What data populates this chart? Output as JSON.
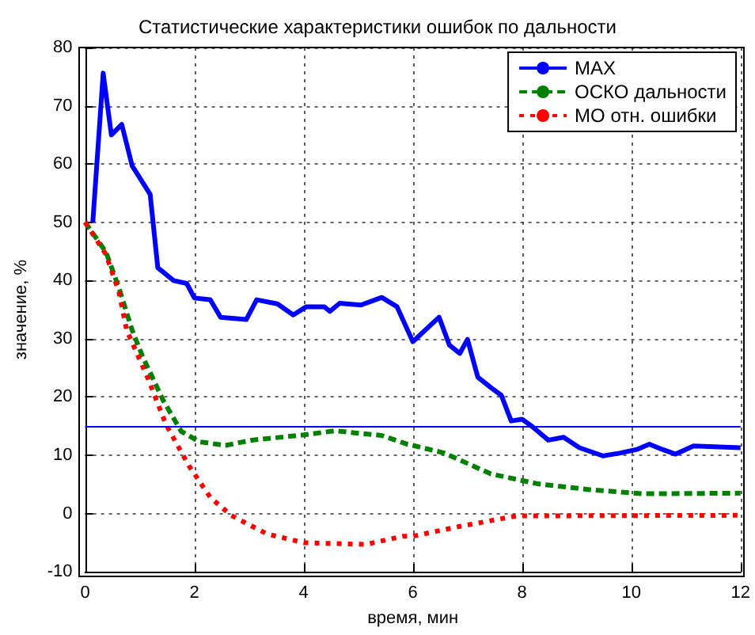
{
  "chart_data": {
    "type": "line",
    "title": "Статистические характеристики ошибок по дальности",
    "xlabel": "время, мин",
    "ylabel": "значение, %",
    "xlim": [
      0,
      12
    ],
    "xticks": [
      0,
      2,
      4,
      6,
      8,
      10,
      12
    ],
    "ylim": [
      -10,
      80
    ],
    "yticks": [
      -10,
      0,
      10,
      20,
      30,
      40,
      50,
      60,
      70,
      80
    ],
    "grid": true,
    "legend": "top right",
    "marker": "none",
    "series": [
      {
        "name": "MAX",
        "color": "#0000ff",
        "line_style": "solid",
        "x": [
          0.14,
          0.33,
          0.48,
          0.67,
          0.86,
          1.19,
          1.33,
          1.62,
          1.86,
          2.0,
          2.29,
          2.48,
          2.95,
          3.14,
          3.52,
          3.81,
          4.05,
          4.38,
          4.48,
          4.66,
          5.05,
          5.43,
          5.71,
          6.0,
          6.48,
          6.67,
          6.86,
          7.0,
          7.19,
          7.43,
          7.62,
          7.8,
          8.0,
          8.19,
          8.48,
          8.76,
          9.05,
          9.48,
          9.8,
          10.1,
          10.33,
          10.57,
          10.81,
          11.14,
          12
        ],
        "values": [
          50,
          75.6,
          65,
          66.8,
          59.7,
          54.8,
          42.2,
          40,
          39.5,
          37,
          36.7,
          33.7,
          33.3,
          36.7,
          36,
          34.1,
          35.5,
          35.5,
          34.7,
          36.1,
          35.8,
          37.1,
          35.5,
          29.5,
          33.7,
          28.9,
          27.5,
          29.9,
          23.4,
          21.6,
          20.3,
          15.9,
          16.2,
          14.9,
          12.6,
          13.1,
          11.3,
          9.9,
          10.4,
          11,
          11.9,
          11,
          10.2,
          11.6,
          11.3
        ]
      },
      {
        "name": "ОСКО дальности",
        "color": "#008000",
        "line_style": "dashed",
        "x": [
          0,
          0.38,
          0.62,
          0.86,
          1.05,
          1.43,
          1.76,
          2.1,
          2.57,
          3.05,
          4.0,
          4.57,
          5.43,
          5.9,
          6.0,
          6.57,
          7.43,
          8.29,
          9.24,
          10.19,
          12
        ],
        "values": [
          50,
          44.9,
          38.7,
          31.5,
          27,
          19.4,
          14.1,
          12.3,
          11.7,
          12.6,
          13.5,
          14.2,
          13.4,
          11.9,
          11.7,
          10.4,
          6.8,
          5.1,
          4.1,
          3.4,
          3.5
        ]
      },
      {
        "name": "МО отн. ошибки",
        "color": "#ff0000",
        "line_style": "dotted",
        "x": [
          0,
          0.38,
          0.62,
          0.76,
          1.14,
          1.48,
          1.9,
          2.29,
          2.67,
          3.33,
          4.0,
          5.14,
          5.81,
          6.0,
          6.86,
          7.9,
          12
        ],
        "values": [
          50,
          44.5,
          38,
          31.5,
          23.4,
          15.3,
          8.2,
          2.8,
          -0.3,
          -3.5,
          -5,
          -5.3,
          -3.9,
          -3.9,
          -2.2,
          -0.4,
          -0.3
        ]
      }
    ],
    "ref_lines": [
      {
        "axis": "y",
        "value": 15,
        "color": "#0000ff",
        "line_style": "solid"
      }
    ]
  }
}
